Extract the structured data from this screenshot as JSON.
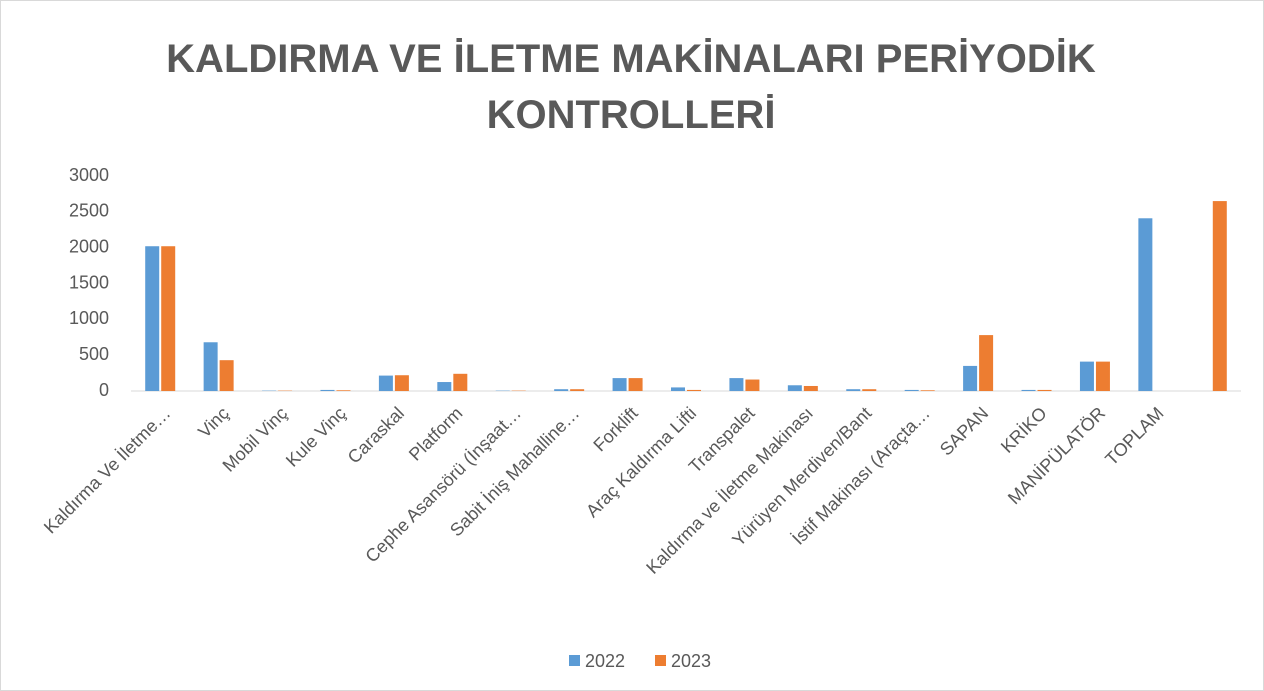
{
  "chart_data": {
    "type": "bar",
    "title": "KALDIRMA VE İLETME MAKİNALARI PERİYODİK KONTROLLERİ",
    "categories": [
      "Kaldırma Ve İletme…",
      "Vinç",
      "Mobil Vinç",
      "Kule Vinç",
      "Caraskal",
      "Platform",
      "Cephe Asansörü (İnşaat…",
      "Sabit İniş Mahalline…",
      "Forklift",
      "Araç Kaldırma Lifti",
      "Transpalet",
      "Kaldırma ve İletme Makinası",
      "Yürüyen Merdiven/Bant",
      "İstif Makinası (Araçta…",
      "SAPAN",
      "KRİKO",
      "MANİPÜLATÖR",
      "TOPLAM",
      null
    ],
    "series": [
      {
        "name": "2022",
        "color": "#5b9bd5",
        "values": [
          2020,
          680,
          5,
          15,
          215,
          125,
          5,
          25,
          180,
          50,
          180,
          80,
          25,
          15,
          350,
          15,
          410,
          2410,
          null
        ]
      },
      {
        "name": "2023",
        "color": "#ed7d31",
        "values": [
          2020,
          430,
          5,
          10,
          220,
          240,
          5,
          25,
          180,
          15,
          160,
          70,
          25,
          10,
          780,
          15,
          410,
          null,
          2650
        ]
      }
    ],
    "ylim": [
      0,
      3000
    ],
    "yticks": [
      0,
      500,
      1000,
      1500,
      2000,
      2500,
      3000
    ],
    "grid": false,
    "legend": "bottom"
  }
}
